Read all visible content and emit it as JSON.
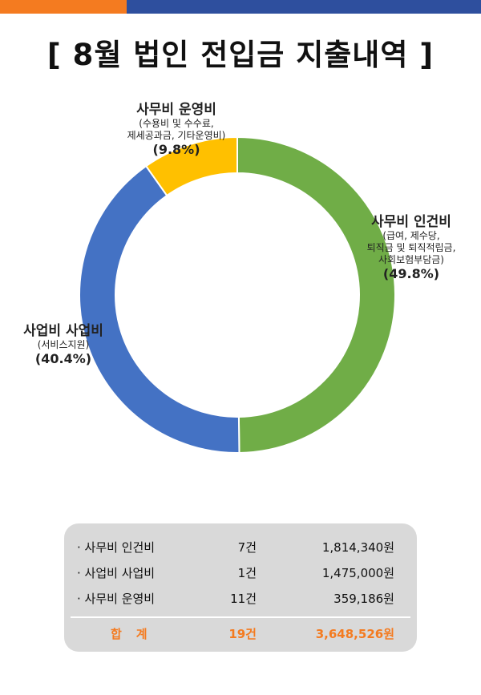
{
  "title": "[ 8월 법인 전입금 지출내역 ]",
  "colors": {
    "bar_orange": "#f47b20",
    "bar_blue": "#2e4f9e",
    "total_text": "#f47b20"
  },
  "chart_data": {
    "type": "pie",
    "variant": "donut",
    "slices": [
      {
        "name": "사무비 인건비",
        "detail": [
          "(급여, 제수당,",
          "퇴직금 및 퇴직적립금,",
          "사회보험부담금)"
        ],
        "percent": 49.8,
        "percent_label": "(49.8%)",
        "color": "#70ad47"
      },
      {
        "name": "사업비 사업비",
        "detail": [
          "(서비스지원)"
        ],
        "percent": 40.4,
        "percent_label": "(40.4%)",
        "color": "#4472c4"
      },
      {
        "name": "사무비 운영비",
        "detail": [
          "(수용비 및 수수료,",
          "제세공과금, 기타운영비)"
        ],
        "percent": 9.8,
        "percent_label": "(9.8%)",
        "color": "#ffc000"
      }
    ]
  },
  "summary": {
    "rows": [
      {
        "label": "· 사무비 인건비",
        "count": "7건",
        "amount": "1,814,340원"
      },
      {
        "label": "· 사업비 사업비",
        "count": "1건",
        "amount": "1,475,000원"
      },
      {
        "label": "· 사무비 운영비",
        "count": "11건",
        "amount": "359,186원"
      }
    ],
    "total": {
      "label": "합계",
      "count": "19건",
      "amount": "3,648,526원"
    }
  }
}
